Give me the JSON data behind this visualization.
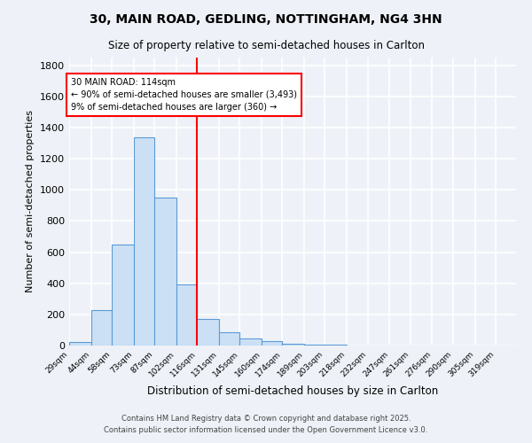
{
  "title1": "30, MAIN ROAD, GEDLING, NOTTINGHAM, NG4 3HN",
  "title2": "Size of property relative to semi-detached houses in Carlton",
  "xlabel": "Distribution of semi-detached houses by size in Carlton",
  "ylabel": "Number of semi-detached properties",
  "bar_labels": [
    "29sqm",
    "44sqm",
    "58sqm",
    "73sqm",
    "87sqm",
    "102sqm",
    "116sqm",
    "131sqm",
    "145sqm",
    "160sqm",
    "174sqm",
    "189sqm",
    "203sqm",
    "218sqm",
    "232sqm",
    "247sqm",
    "261sqm",
    "276sqm",
    "290sqm",
    "305sqm",
    "319sqm"
  ],
  "bar_values": [
    20,
    230,
    650,
    1340,
    950,
    395,
    170,
    85,
    45,
    30,
    10,
    5,
    5,
    0,
    0,
    0,
    0,
    0,
    0,
    0,
    0
  ],
  "bin_edges": [
    29,
    44,
    58,
    73,
    87,
    102,
    116,
    131,
    145,
    160,
    174,
    189,
    203,
    218,
    232,
    247,
    261,
    276,
    290,
    305,
    319
  ],
  "bar_color": "#cce0f5",
  "bar_edge_color": "#5b9bd5",
  "vline_x": 116,
  "vline_color": "red",
  "annotation_text": "30 MAIN ROAD: 114sqm\n← 90% of semi-detached houses are smaller (3,493)\n9% of semi-detached houses are larger (360) →",
  "annotation_box_color": "white",
  "annotation_box_edge": "red",
  "ylim": [
    0,
    1850
  ],
  "yticks": [
    0,
    200,
    400,
    600,
    800,
    1000,
    1200,
    1400,
    1600,
    1800
  ],
  "background_color": "#eef2f8",
  "grid_color": "white",
  "footer1": "Contains HM Land Registry data © Crown copyright and database right 2025.",
  "footer2": "Contains public sector information licensed under the Open Government Licence v3.0."
}
